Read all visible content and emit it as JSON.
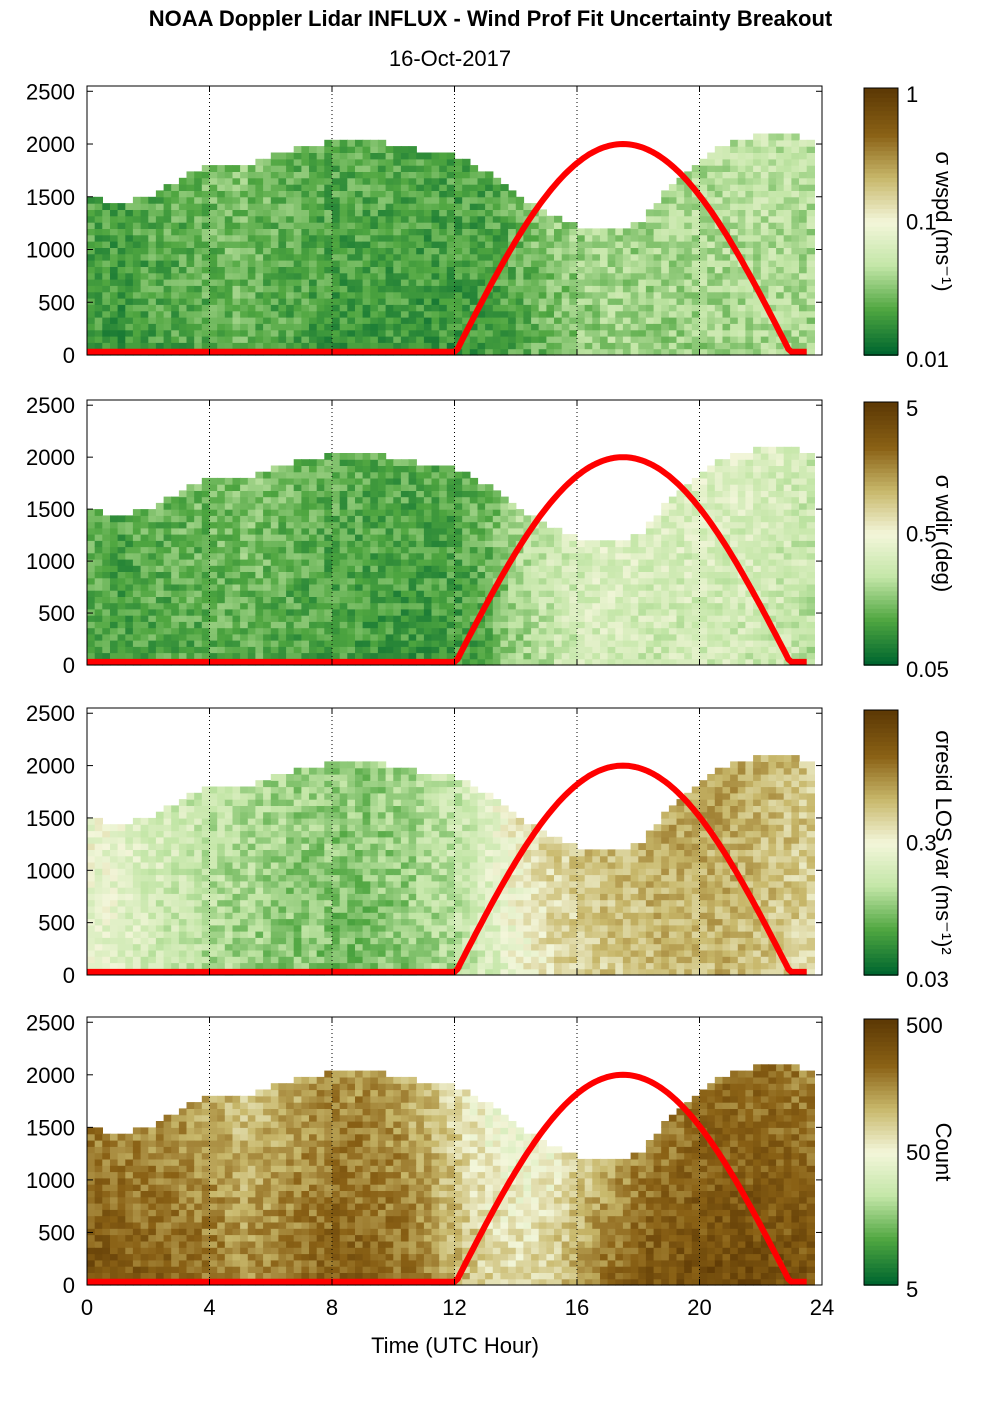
{
  "chart_data": {
    "type": "heatmap",
    "title": "NOAA Doppler Lidar INFLUX - Wind Prof Fit Uncertainty Breakout",
    "subtitle": "16-Oct-2017",
    "xlabel": "Time (UTC Hour)",
    "xlim": [
      0,
      24
    ],
    "x_ticks": [
      "0",
      "4",
      "8",
      "12",
      "16",
      "20",
      "24"
    ],
    "ylim": [
      0,
      2550
    ],
    "y_ticks": [
      "0",
      "500",
      "1000",
      "1500",
      "2000",
      "2500"
    ],
    "grid": "dotted vertical lines every 4 hours",
    "colormap": [
      "#00662f",
      "#4fa640",
      "#c3e6a7",
      "#f3f6da",
      "#c8b86b",
      "#8a6115",
      "#5e3a05"
    ],
    "solar_curve": {
      "color": "#ff0000",
      "sunrise_hour": 12,
      "peak_hour": 17.5,
      "sunset_hour": 23,
      "peak_height": 2000
    },
    "panels": [
      {
        "name": "wspd",
        "colorbar_label": "σ wspd (ms⁻¹)",
        "colorbar_ticks": [
          "1",
          "0.1",
          "0.01"
        ],
        "data_top_height": [
          1480,
          1400,
          1500,
          1650,
          1780,
          1750,
          1880,
          1950,
          2000,
          2030,
          1950,
          1900,
          1850,
          1700,
          1480,
          1300,
          1180,
          1150,
          1250,
          1600,
          1850,
          2000,
          2080,
          2050,
          1920
        ],
        "data_level_profile": [
          0.14,
          0.12,
          0.15,
          0.16,
          0.18,
          0.2,
          0.17,
          0.15,
          0.13,
          0.14,
          0.13,
          0.12,
          0.12,
          0.13,
          0.18,
          0.22,
          0.25,
          0.28,
          0.26,
          0.27,
          0.28,
          0.29,
          0.3,
          0.29,
          0.28
        ]
      },
      {
        "name": "wdir",
        "colorbar_label": "σ wdir (deg)",
        "colorbar_ticks": [
          "5",
          "0.5",
          "0.05"
        ],
        "data_top_height": [
          1480,
          1400,
          1500,
          1650,
          1780,
          1750,
          1880,
          1950,
          2000,
          2030,
          1950,
          1900,
          1850,
          1700,
          1480,
          1300,
          1180,
          1150,
          1250,
          1600,
          1850,
          2000,
          2080,
          2050,
          1920
        ],
        "data_level_profile": [
          0.16,
          0.14,
          0.16,
          0.17,
          0.18,
          0.2,
          0.18,
          0.16,
          0.14,
          0.14,
          0.13,
          0.13,
          0.14,
          0.18,
          0.28,
          0.34,
          0.38,
          0.4,
          0.38,
          0.38,
          0.38,
          0.38,
          0.36,
          0.35,
          0.32
        ]
      },
      {
        "name": "resid",
        "colorbar_label": "σresid LOS var (ms⁻¹)²",
        "colorbar_ticks": [
          "0.3",
          "0.03"
        ],
        "data_top_height": [
          1480,
          1400,
          1500,
          1650,
          1780,
          1750,
          1880,
          1950,
          2000,
          2030,
          1950,
          1900,
          1850,
          1700,
          1480,
          1300,
          1180,
          1150,
          1250,
          1600,
          1850,
          2000,
          2080,
          2050,
          1920
        ],
        "data_level_profile": [
          0.45,
          0.42,
          0.38,
          0.34,
          0.3,
          0.28,
          0.25,
          0.24,
          0.22,
          0.22,
          0.24,
          0.28,
          0.32,
          0.4,
          0.5,
          0.56,
          0.6,
          0.62,
          0.64,
          0.66,
          0.66,
          0.66,
          0.63,
          0.6,
          0.56
        ]
      },
      {
        "name": "count",
        "colorbar_label": "Count",
        "colorbar_ticks": [
          "500",
          "50",
          "5"
        ],
        "data_top_height": [
          1480,
          1400,
          1500,
          1650,
          1780,
          1750,
          1880,
          1950,
          2000,
          2030,
          1950,
          1900,
          1850,
          1700,
          1480,
          1300,
          1180,
          1150,
          1250,
          1600,
          1850,
          2000,
          2080,
          2050,
          1920
        ],
        "data_level_profile": [
          0.9,
          0.88,
          0.86,
          0.84,
          0.8,
          0.75,
          0.78,
          0.82,
          0.86,
          0.85,
          0.82,
          0.76,
          0.68,
          0.6,
          0.58,
          0.62,
          0.72,
          0.82,
          0.88,
          0.9,
          0.92,
          0.92,
          0.92,
          0.9,
          0.88
        ]
      }
    ]
  }
}
